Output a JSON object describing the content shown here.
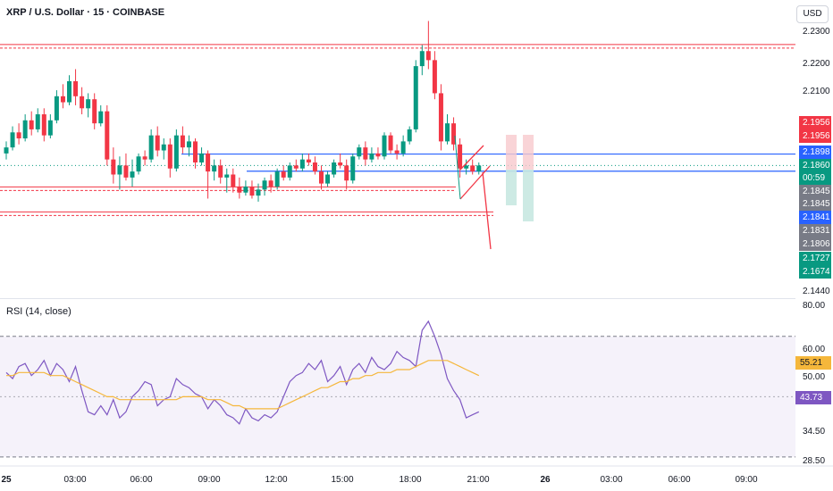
{
  "header": {
    "title": "XRP / U.S. Dollar · 15 · COINBASE",
    "currency_button": "USD"
  },
  "chart_data": [
    {
      "type": "candlestick",
      "title": "XRP / U.S. Dollar · 15 · COINBASE",
      "ylim": [
        2.144,
        2.234
      ],
      "y_ticks": [
        "2.2300",
        "2.2200",
        "2.2100",
        "2.1440"
      ],
      "x_ticks": [
        "25",
        "03:00",
        "06:00",
        "09:00",
        "12:00",
        "15:00",
        "18:00",
        "21:00",
        "26",
        "03:00",
        "06:00",
        "09:00"
      ],
      "price_labels": [
        {
          "text": "2.1956",
          "color": "#f23645"
        },
        {
          "text": "2.1956",
          "color": "#f23645"
        },
        {
          "text": "2.1898",
          "color": "#2962ff"
        },
        {
          "text": "2.1860",
          "color": "#089981"
        },
        {
          "text": "00:59",
          "color": "#089981"
        },
        {
          "text": "2.1845",
          "color": "#787b86"
        },
        {
          "text": "2.1845",
          "color": "#787b86"
        },
        {
          "text": "2.1841",
          "color": "#2962ff"
        },
        {
          "text": "2.1831",
          "color": "#787b86"
        },
        {
          "text": "2.1806",
          "color": "#787b86"
        },
        {
          "text": "2.1727",
          "color": "#089981"
        },
        {
          "text": "2.1674",
          "color": "#089981"
        }
      ],
      "horizontal_levels": [
        {
          "price": 2.2256,
          "color": "#f23645",
          "style": "double-dashed"
        },
        {
          "price": 2.17,
          "color": "#f23645",
          "style": "double-dashed"
        },
        {
          "price": 2.1783,
          "color": "#f23645",
          "style": "double-dashed"
        },
        {
          "price": 2.1898,
          "color": "#2962ff",
          "style": "solid"
        },
        {
          "price": 2.1841,
          "color": "#2962ff",
          "style": "solid"
        }
      ],
      "candles": [
        [
          2.19,
          2.194,
          2.188,
          2.192
        ],
        [
          2.192,
          2.199,
          2.191,
          2.197
        ],
        [
          2.197,
          2.2,
          2.193,
          2.195
        ],
        [
          2.195,
          2.203,
          2.194,
          2.201
        ],
        [
          2.201,
          2.204,
          2.196,
          2.198
        ],
        [
          2.198,
          2.205,
          2.197,
          2.203
        ],
        [
          2.203,
          2.205,
          2.194,
          2.196
        ],
        [
          2.196,
          2.203,
          2.195,
          2.201
        ],
        [
          2.201,
          2.211,
          2.2,
          2.209
        ],
        [
          2.209,
          2.213,
          2.205,
          2.207
        ],
        [
          2.207,
          2.216,
          2.206,
          2.214
        ],
        [
          2.214,
          2.218,
          2.206,
          2.209
        ],
        [
          2.209,
          2.212,
          2.203,
          2.205
        ],
        [
          2.205,
          2.21,
          2.202,
          2.208
        ],
        [
          2.208,
          2.21,
          2.198,
          2.2
        ],
        [
          2.2,
          2.206,
          2.199,
          2.204
        ],
        [
          2.204,
          2.206,
          2.186,
          2.188
        ],
        [
          2.188,
          2.192,
          2.18,
          2.183
        ],
        [
          2.183,
          2.189,
          2.178,
          2.186
        ],
        [
          2.186,
          2.19,
          2.181,
          2.182
        ],
        [
          2.182,
          2.188,
          2.179,
          2.184
        ],
        [
          2.184,
          2.19,
          2.183,
          2.189
        ],
        [
          2.189,
          2.191,
          2.186,
          2.188
        ],
        [
          2.188,
          2.198,
          2.187,
          2.196
        ],
        [
          2.196,
          2.199,
          2.189,
          2.191
        ],
        [
          2.191,
          2.195,
          2.188,
          2.193
        ],
        [
          2.193,
          2.195,
          2.182,
          2.185
        ],
        [
          2.185,
          2.198,
          2.184,
          2.196
        ],
        [
          2.196,
          2.199,
          2.19,
          2.192
        ],
        [
          2.192,
          2.196,
          2.189,
          2.194
        ],
        [
          2.194,
          2.195,
          2.185,
          2.187
        ],
        [
          2.187,
          2.192,
          2.186,
          2.19
        ],
        [
          2.19,
          2.191,
          2.175,
          2.184
        ],
        [
          2.184,
          2.188,
          2.181,
          2.186
        ],
        [
          2.186,
          2.188,
          2.18,
          2.182
        ],
        [
          2.182,
          2.185,
          2.177,
          2.183
        ],
        [
          2.183,
          2.185,
          2.177,
          2.179
        ],
        [
          2.179,
          2.182,
          2.175,
          2.177
        ],
        [
          2.177,
          2.181,
          2.176,
          2.179
        ],
        [
          2.179,
          2.181,
          2.175,
          2.176
        ],
        [
          2.176,
          2.18,
          2.174,
          2.178
        ],
        [
          2.178,
          2.182,
          2.176,
          2.181
        ],
        [
          2.181,
          2.183,
          2.177,
          2.179
        ],
        [
          2.179,
          2.185,
          2.178,
          2.184
        ],
        [
          2.184,
          2.186,
          2.181,
          2.182
        ],
        [
          2.182,
          2.187,
          2.181,
          2.186
        ],
        [
          2.186,
          2.188,
          2.184,
          2.185
        ],
        [
          2.185,
          2.19,
          2.184,
          2.188
        ],
        [
          2.188,
          2.19,
          2.186,
          2.187
        ],
        [
          2.187,
          2.189,
          2.183,
          2.184
        ],
        [
          2.184,
          2.186,
          2.178,
          2.18
        ],
        [
          2.18,
          2.184,
          2.179,
          2.183
        ],
        [
          2.183,
          2.188,
          2.182,
          2.187
        ],
        [
          2.187,
          2.19,
          2.185,
          2.186
        ],
        [
          2.186,
          2.188,
          2.178,
          2.181
        ],
        [
          2.181,
          2.19,
          2.18,
          2.189
        ],
        [
          2.189,
          2.193,
          2.188,
          2.192
        ],
        [
          2.192,
          2.194,
          2.186,
          2.188
        ],
        [
          2.188,
          2.192,
          2.187,
          2.19
        ],
        [
          2.19,
          2.192,
          2.188,
          2.189
        ],
        [
          2.189,
          2.197,
          2.188,
          2.196
        ],
        [
          2.196,
          2.197,
          2.19,
          2.191
        ],
        [
          2.191,
          2.193,
          2.188,
          2.19
        ],
        [
          2.19,
          2.196,
          2.189,
          2.194
        ],
        [
          2.194,
          2.199,
          2.193,
          2.198
        ],
        [
          2.198,
          2.221,
          2.197,
          2.219
        ],
        [
          2.219,
          2.226,
          2.216,
          2.224
        ],
        [
          2.224,
          2.234,
          2.218,
          2.221
        ],
        [
          2.221,
          2.224,
          2.208,
          2.21
        ],
        [
          2.21,
          2.213,
          2.191,
          2.194
        ],
        [
          2.194,
          2.203,
          2.193,
          2.2
        ],
        [
          2.2,
          2.202,
          2.191,
          2.193
        ],
        [
          2.193,
          2.195,
          2.182,
          2.185
        ],
        [
          2.185,
          2.188,
          2.183,
          2.186
        ],
        [
          2.186,
          2.188,
          2.183,
          2.184
        ],
        [
          2.184,
          2.187,
          2.183,
          2.186
        ]
      ]
    },
    {
      "type": "line",
      "title": "RSI (14, close)",
      "ylim": [
        28.5,
        80
      ],
      "y_ticks": [
        "80.00",
        "60.00",
        "50.00",
        "34.50",
        "28.50"
      ],
      "series": [
        {
          "color": "#7e57c2",
          "values": [
            58,
            56,
            60,
            61,
            57,
            59,
            62,
            57,
            61,
            59,
            55,
            60,
            52,
            45,
            44,
            47,
            44,
            49,
            43,
            45,
            50,
            52,
            55,
            54,
            47,
            49,
            50,
            56,
            54,
            53,
            51,
            50,
            46,
            49,
            47,
            44,
            43,
            41,
            46,
            43,
            42,
            44,
            43,
            45,
            50,
            55,
            57,
            58,
            61,
            59,
            62,
            55,
            57,
            60,
            54,
            59,
            61,
            58,
            63,
            60,
            59,
            61,
            65,
            63,
            62,
            60,
            72,
            75,
            70,
            64,
            56,
            52,
            49,
            43,
            44,
            45
          ]
        },
        {
          "color": "#f5b73b",
          "values": [
            57,
            57,
            58,
            58,
            58,
            58,
            58,
            57,
            57,
            57,
            56,
            55,
            54,
            53,
            52,
            51,
            50,
            50,
            49,
            49,
            49,
            49,
            49,
            49,
            49,
            49,
            49,
            49,
            50,
            50,
            50,
            50,
            49,
            49,
            49,
            48,
            47,
            47,
            46,
            46,
            46,
            46,
            46,
            46,
            47,
            48,
            49,
            50,
            51,
            52,
            53,
            53,
            54,
            55,
            55,
            56,
            56,
            57,
            57,
            58,
            58,
            58,
            59,
            59,
            59,
            60,
            61,
            62,
            62,
            62,
            62,
            61,
            60,
            59,
            58,
            57
          ]
        }
      ],
      "last_values": [
        {
          "text": "55.21",
          "color": "#f5b73b"
        },
        {
          "text": "43.73",
          "color": "#7e57c2"
        }
      ]
    }
  ],
  "rsi": {
    "title": "RSI (14, close)"
  }
}
